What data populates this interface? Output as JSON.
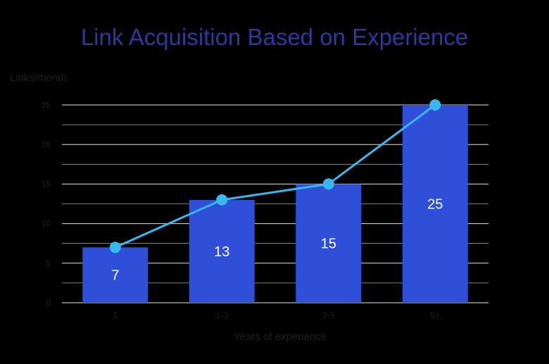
{
  "chart_data": {
    "type": "bar",
    "title": "Link Acquisition Based on Experience",
    "xlabel": "Years of experience",
    "ylabel": "Links/month",
    "categories": [
      "1",
      "1-3",
      "3-5",
      "5+"
    ],
    "values": [
      7,
      13,
      15,
      25
    ],
    "value_labels": [
      "7",
      "13",
      "15",
      "25"
    ],
    "overlay_line_values": [
      7,
      13,
      15,
      25
    ],
    "ylim": [
      0,
      25
    ],
    "yticks": [
      "0",
      "5",
      "10",
      "15",
      "20",
      "25"
    ],
    "grid": true,
    "colors": {
      "bar": "#2f4fd9",
      "line": "#38b8ef",
      "grid": "#ffffff",
      "title": "#2b3a9c",
      "text": "#1e1e1e"
    }
  }
}
